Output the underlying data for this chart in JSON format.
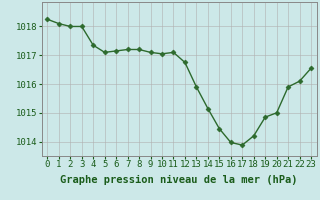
{
  "x": [
    0,
    1,
    2,
    3,
    4,
    5,
    6,
    7,
    8,
    9,
    10,
    11,
    12,
    13,
    14,
    15,
    16,
    17,
    18,
    19,
    20,
    21,
    22,
    23
  ],
  "y": [
    1018.25,
    1018.1,
    1018.0,
    1018.0,
    1017.35,
    1017.1,
    1017.15,
    1017.2,
    1017.2,
    1017.1,
    1017.05,
    1017.1,
    1016.75,
    1015.9,
    1015.15,
    1014.45,
    1013.97,
    1013.88,
    1014.2,
    1014.85,
    1015.0,
    1015.9,
    1016.1,
    1016.55
  ],
  "line_color": "#2d6a2d",
  "marker": "D",
  "marker_size": 2.5,
  "line_width": 1.0,
  "bg_color": "#cce8e8",
  "grid_color": "#b0b0b0",
  "ylabel_ticks": [
    1014,
    1015,
    1016,
    1017,
    1018
  ],
  "xlim": [
    -0.5,
    23.5
  ],
  "ylim": [
    1013.5,
    1018.85
  ],
  "xlabel": "Graphe pression niveau de la mer (hPa)",
  "xlabel_fontsize": 7.5,
  "tick_fontsize": 6.5,
  "xlabel_color": "#1a5c1a",
  "tick_color": "#1a5c1a",
  "axis_color": "#888888"
}
